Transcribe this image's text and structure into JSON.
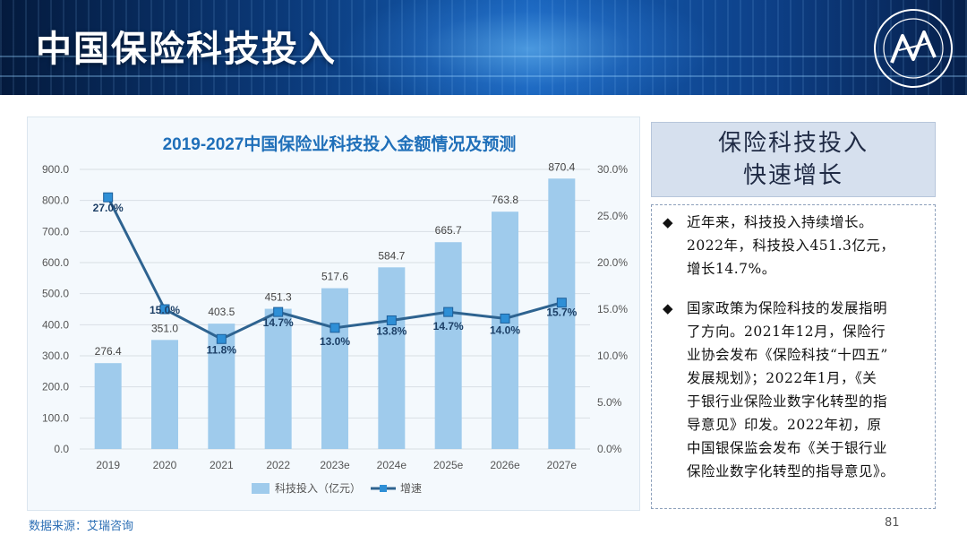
{
  "header": {
    "title": "中国保险科技投入"
  },
  "chart_data": {
    "type": "bar",
    "title": "2019-2027中国保险业科技投入金额情况及预测",
    "categories": [
      "2019",
      "2020",
      "2021",
      "2022",
      "2023e",
      "2024e",
      "2025e",
      "2026e",
      "2027e"
    ],
    "series": [
      {
        "name": "科技投入（亿元）",
        "type": "bar",
        "axis": "left",
        "values": [
          276.4,
          351.0,
          403.5,
          451.3,
          517.6,
          584.7,
          665.7,
          763.8,
          870.4
        ],
        "value_labels": [
          "276.4",
          "351.0",
          "403.5",
          "451.3",
          "517.6",
          "584.7",
          "665.7",
          "763.8",
          "870.4"
        ]
      },
      {
        "name": "增速",
        "type": "line",
        "axis": "right",
        "values": [
          27.0,
          15.0,
          11.8,
          14.7,
          13.0,
          13.8,
          14.7,
          14.0,
          15.7
        ],
        "value_labels": [
          "27.0%",
          "15.0%",
          "11.8%",
          "14.7%",
          "13.0%",
          "13.8%",
          "14.7%",
          "14.0%",
          "15.7%"
        ]
      }
    ],
    "ylim_left": [
      0,
      900
    ],
    "yticks_left": [
      "0.0",
      "100.0",
      "200.0",
      "300.0",
      "400.0",
      "500.0",
      "600.0",
      "700.0",
      "800.0",
      "900.0"
    ],
    "ylim_right": [
      0,
      30
    ],
    "yticks_right": [
      "0.0%",
      "5.0%",
      "10.0%",
      "15.0%",
      "20.0%",
      "25.0%",
      "30.0%"
    ],
    "grid": true,
    "legend": "bottom",
    "colors": {
      "bar": "#9fcbec",
      "line": "#2e6390",
      "marker": "#2e8fd6",
      "title": "#1f6fb9"
    }
  },
  "side": {
    "heading": [
      "保险科技投入",
      "快速增长"
    ],
    "bullet_symbol": "◆",
    "bullets": [
      [
        "近年来，科技投入持续增长。",
        "2022年，科技投入451.3亿元，",
        "增长14.7%。"
      ],
      [
        "国家政策为保险科技的发展指明",
        "了方向。2021年12月，保险行",
        "业协会发布《保险科技“十四五”",
        "发展规划》；2022年1月，《关",
        "于银行业保险业数字化转型的指",
        "导意见》印发。2022年初，原",
        "中国银保监会发布《关于银行业",
        "保险业数字化转型的指导意见》。"
      ]
    ]
  },
  "footer": {
    "source": "数据来源：艾瑞咨询",
    "page": "81"
  }
}
